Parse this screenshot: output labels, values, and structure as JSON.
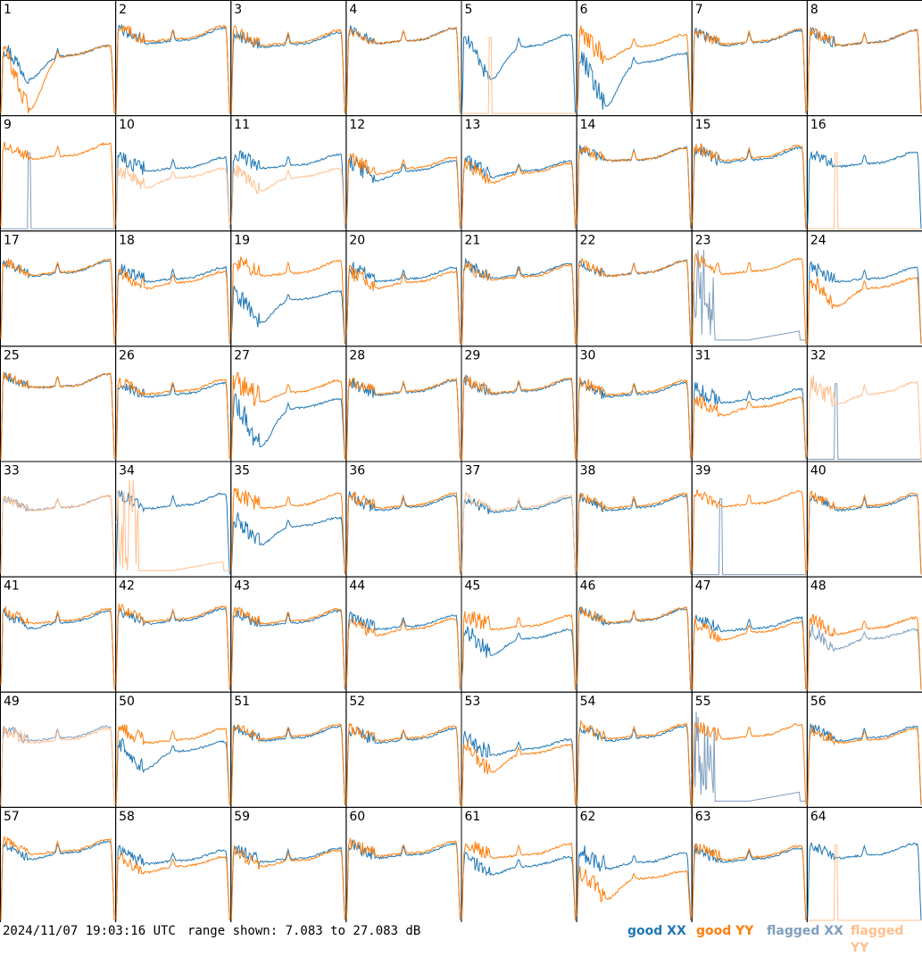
{
  "footer": {
    "timestamp": "2024/11/07 19:03:16 UTC",
    "range_text": "range shown: 7.083 to 27.083 dB"
  },
  "legend": [
    {
      "label": "good XX",
      "color": "#1f77b4"
    },
    {
      "label": "good YY",
      "color": "#ff7f0e"
    },
    {
      "label": "flagged XX",
      "color": "#7f9fbf"
    },
    {
      "label": "flagged YY",
      "color": "#ffbf8f"
    }
  ],
  "chart_data": {
    "type": "line",
    "layout": "small-multiples 8x8",
    "ylim": [
      7.083,
      27.083
    ],
    "yunit": "dB",
    "grid": false,
    "legend_position": "bottom-right",
    "panels": [
      {
        "id": "1",
        "xx": "good",
        "yy": "good",
        "xx_level": 0.62,
        "yy_level": 0.62,
        "xx_dip": 0.25,
        "yy_dip": 0.55,
        "noise": 0.7
      },
      {
        "id": "2",
        "xx": "good",
        "yy": "good",
        "xx_level": 0.78,
        "yy_level": 0.8,
        "xx_dip": 0.05,
        "yy_dip": 0.05,
        "noise": 0.5
      },
      {
        "id": "3",
        "xx": "good",
        "yy": "good",
        "xx_level": 0.74,
        "yy_level": 0.76,
        "xx_dip": 0.05,
        "yy_dip": 0.05,
        "noise": 0.5
      },
      {
        "id": "4",
        "xx": "good",
        "yy": "good",
        "xx_level": 0.78,
        "yy_level": 0.78,
        "xx_dip": 0.05,
        "yy_dip": 0.05,
        "noise": 0.4
      },
      {
        "id": "5",
        "xx": "good",
        "yy": "flagged_dead",
        "xx_level": 0.72,
        "yy_level": 0.0,
        "xx_dip": 0.35,
        "yy_dip": 0.0,
        "noise": 0.6
      },
      {
        "id": "6",
        "xx": "good",
        "yy": "good",
        "xx_level": 0.55,
        "yy_level": 0.72,
        "xx_dip": 0.45,
        "yy_dip": 0.15,
        "noise": 0.9
      },
      {
        "id": "7",
        "xx": "good",
        "yy": "good",
        "xx_level": 0.76,
        "yy_level": 0.77,
        "xx_dip": 0.05,
        "yy_dip": 0.05,
        "noise": 0.4
      },
      {
        "id": "8",
        "xx": "good",
        "yy": "good",
        "xx_level": 0.76,
        "yy_level": 0.76,
        "xx_dip": 0.05,
        "yy_dip": 0.05,
        "noise": 0.5
      },
      {
        "id": "9",
        "xx": "flagged_dead",
        "yy": "good",
        "xx_level": 0.05,
        "yy_level": 0.78,
        "xx_dip": 0.0,
        "yy_dip": 0.05,
        "noise": 0.4
      },
      {
        "id": "10",
        "xx": "good",
        "yy": "flagged",
        "xx_level": 0.65,
        "yy_level": 0.55,
        "xx_dip": 0.05,
        "yy_dip": 0.12,
        "noise": 0.6
      },
      {
        "id": "11",
        "xx": "good",
        "yy": "flagged",
        "xx_level": 0.68,
        "yy_level": 0.55,
        "xx_dip": 0.05,
        "yy_dip": 0.15,
        "noise": 0.6
      },
      {
        "id": "12",
        "xx": "good",
        "yy": "good",
        "xx_level": 0.62,
        "yy_level": 0.65,
        "xx_dip": 0.12,
        "yy_dip": 0.08,
        "noise": 0.6
      },
      {
        "id": "13",
        "xx": "good",
        "yy": "good",
        "xx_level": 0.62,
        "yy_level": 0.6,
        "xx_dip": 0.08,
        "yy_dip": 0.12,
        "noise": 0.6
      },
      {
        "id": "14",
        "xx": "good",
        "yy": "good",
        "xx_level": 0.74,
        "yy_level": 0.74,
        "xx_dip": 0.03,
        "yy_dip": 0.03,
        "noise": 0.4
      },
      {
        "id": "15",
        "xx": "good",
        "yy": "good",
        "xx_level": 0.74,
        "yy_level": 0.76,
        "xx_dip": 0.05,
        "yy_dip": 0.05,
        "noise": 0.5
      },
      {
        "id": "16",
        "xx": "good",
        "yy": "flagged_dead",
        "xx_level": 0.7,
        "yy_level": 0.0,
        "xx_dip": 0.05,
        "yy_dip": 0.0,
        "noise": 0.4
      },
      {
        "id": "17",
        "xx": "good",
        "yy": "good",
        "xx_level": 0.76,
        "yy_level": 0.77,
        "xx_dip": 0.05,
        "yy_dip": 0.05,
        "noise": 0.4
      },
      {
        "id": "18",
        "xx": "good",
        "yy": "good",
        "xx_level": 0.7,
        "yy_level": 0.66,
        "xx_dip": 0.05,
        "yy_dip": 0.08,
        "noise": 0.5
      },
      {
        "id": "19",
        "xx": "good",
        "yy": "good",
        "xx_level": 0.48,
        "yy_level": 0.76,
        "xx_dip": 0.25,
        "yy_dip": 0.05,
        "noise": 0.7
      },
      {
        "id": "20",
        "xx": "good",
        "yy": "good",
        "xx_level": 0.7,
        "yy_level": 0.66,
        "xx_dip": 0.05,
        "yy_dip": 0.08,
        "noise": 0.6
      },
      {
        "id": "21",
        "xx": "good",
        "yy": "good",
        "xx_level": 0.74,
        "yy_level": 0.72,
        "xx_dip": 0.05,
        "yy_dip": 0.05,
        "noise": 0.5
      },
      {
        "id": "22",
        "xx": "good",
        "yy": "good",
        "xx_level": 0.76,
        "yy_level": 0.76,
        "xx_dip": 0.05,
        "yy_dip": 0.05,
        "noise": 0.4
      },
      {
        "id": "23",
        "xx": "flagged_low",
        "yy": "good",
        "xx_level": 0.12,
        "yy_level": 0.78,
        "xx_dip": 0.0,
        "yy_dip": 0.05,
        "noise": 0.6
      },
      {
        "id": "24",
        "xx": "good",
        "yy": "good",
        "xx_level": 0.7,
        "yy_level": 0.6,
        "xx_dip": 0.05,
        "yy_dip": 0.2,
        "noise": 0.6
      },
      {
        "id": "25",
        "xx": "good",
        "yy": "good",
        "xx_level": 0.78,
        "yy_level": 0.78,
        "xx_dip": 0.03,
        "yy_dip": 0.03,
        "noise": 0.4
      },
      {
        "id": "26",
        "xx": "good",
        "yy": "good",
        "xx_level": 0.7,
        "yy_level": 0.73,
        "xx_dip": 0.05,
        "yy_dip": 0.05,
        "noise": 0.4
      },
      {
        "id": "27",
        "xx": "good",
        "yy": "good",
        "xx_level": 0.55,
        "yy_level": 0.72,
        "xx_dip": 0.4,
        "yy_dip": 0.12,
        "noise": 0.9
      },
      {
        "id": "28",
        "xx": "good",
        "yy": "good",
        "xx_level": 0.72,
        "yy_level": 0.73,
        "xx_dip": 0.05,
        "yy_dip": 0.05,
        "noise": 0.5
      },
      {
        "id": "29",
        "xx": "good",
        "yy": "good",
        "xx_level": 0.73,
        "yy_level": 0.74,
        "xx_dip": 0.05,
        "yy_dip": 0.05,
        "noise": 0.5
      },
      {
        "id": "30",
        "xx": "good",
        "yy": "good",
        "xx_level": 0.7,
        "yy_level": 0.72,
        "xx_dip": 0.05,
        "yy_dip": 0.05,
        "noise": 0.5
      },
      {
        "id": "31",
        "xx": "good",
        "yy": "good",
        "xx_level": 0.64,
        "yy_level": 0.56,
        "xx_dip": 0.05,
        "yy_dip": 0.1,
        "noise": 0.6
      },
      {
        "id": "32",
        "xx": "flagged_dead",
        "yy": "flagged",
        "xx_level": 0.0,
        "yy_level": 0.7,
        "xx_dip": 0.0,
        "yy_dip": 0.12,
        "noise": 0.9
      },
      {
        "id": "33",
        "xx": "flagged",
        "yy": "flagged",
        "xx_level": 0.72,
        "yy_level": 0.72,
        "xx_dip": 0.05,
        "yy_dip": 0.05,
        "noise": 0.3
      },
      {
        "id": "34",
        "xx": "good",
        "yy": "flagged_low",
        "xx_level": 0.74,
        "yy_level": 0.08,
        "xx_dip": 0.05,
        "yy_dip": 0.0,
        "noise": 0.5
      },
      {
        "id": "35",
        "xx": "good",
        "yy": "good",
        "xx_level": 0.52,
        "yy_level": 0.74,
        "xx_dip": 0.2,
        "yy_dip": 0.05,
        "noise": 0.7
      },
      {
        "id": "36",
        "xx": "good",
        "yy": "good",
        "xx_level": 0.72,
        "yy_level": 0.74,
        "xx_dip": 0.05,
        "yy_dip": 0.05,
        "noise": 0.5
      },
      {
        "id": "37",
        "xx": "good",
        "yy": "flagged",
        "xx_level": 0.7,
        "yy_level": 0.72,
        "xx_dip": 0.05,
        "yy_dip": 0.05,
        "noise": 0.4
      },
      {
        "id": "38",
        "xx": "good",
        "yy": "good",
        "xx_level": 0.72,
        "yy_level": 0.74,
        "xx_dip": 0.05,
        "yy_dip": 0.05,
        "noise": 0.4
      },
      {
        "id": "39",
        "xx": "flagged_dead",
        "yy": "good",
        "xx_level": 0.0,
        "yy_level": 0.76,
        "xx_dip": 0.0,
        "yy_dip": 0.05,
        "noise": 0.4
      },
      {
        "id": "40",
        "xx": "good",
        "yy": "good",
        "xx_level": 0.72,
        "yy_level": 0.74,
        "xx_dip": 0.05,
        "yy_dip": 0.05,
        "noise": 0.4
      },
      {
        "id": "41",
        "xx": "good",
        "yy": "good",
        "xx_level": 0.72,
        "yy_level": 0.74,
        "xx_dip": 0.08,
        "yy_dip": 0.05,
        "noise": 0.4
      },
      {
        "id": "42",
        "xx": "good",
        "yy": "good",
        "xx_level": 0.74,
        "yy_level": 0.76,
        "xx_dip": 0.05,
        "yy_dip": 0.05,
        "noise": 0.4
      },
      {
        "id": "43",
        "xx": "good",
        "yy": "good",
        "xx_level": 0.72,
        "yy_level": 0.74,
        "xx_dip": 0.05,
        "yy_dip": 0.05,
        "noise": 0.4
      },
      {
        "id": "44",
        "xx": "good",
        "yy": "good",
        "xx_level": 0.68,
        "yy_level": 0.65,
        "xx_dip": 0.05,
        "yy_dip": 0.08,
        "noise": 0.5
      },
      {
        "id": "45",
        "xx": "good",
        "yy": "good",
        "xx_level": 0.55,
        "yy_level": 0.68,
        "xx_dip": 0.18,
        "yy_dip": 0.05,
        "noise": 0.7
      },
      {
        "id": "46",
        "xx": "good",
        "yy": "good",
        "xx_level": 0.74,
        "yy_level": 0.75,
        "xx_dip": 0.05,
        "yy_dip": 0.05,
        "noise": 0.4
      },
      {
        "id": "47",
        "xx": "good",
        "yy": "good",
        "xx_level": 0.66,
        "yy_level": 0.62,
        "xx_dip": 0.05,
        "yy_dip": 0.1,
        "noise": 0.5
      },
      {
        "id": "48",
        "xx": "flagged",
        "yy": "good",
        "xx_level": 0.55,
        "yy_level": 0.66,
        "xx_dip": 0.12,
        "yy_dip": 0.08,
        "noise": 0.6
      },
      {
        "id": "49",
        "xx": "flagged",
        "yy": "flagged",
        "xx_level": 0.72,
        "yy_level": 0.7,
        "xx_dip": 0.05,
        "yy_dip": 0.05,
        "noise": 0.5
      },
      {
        "id": "50",
        "xx": "good",
        "yy": "good",
        "xx_level": 0.58,
        "yy_level": 0.7,
        "xx_dip": 0.2,
        "yy_dip": 0.05,
        "noise": 0.6
      },
      {
        "id": "51",
        "xx": "good",
        "yy": "good",
        "xx_level": 0.72,
        "yy_level": 0.74,
        "xx_dip": 0.05,
        "yy_dip": 0.05,
        "noise": 0.4
      },
      {
        "id": "52",
        "xx": "good",
        "yy": "good",
        "xx_level": 0.7,
        "yy_level": 0.72,
        "xx_dip": 0.05,
        "yy_dip": 0.05,
        "noise": 0.5
      },
      {
        "id": "53",
        "xx": "good",
        "yy": "good",
        "xx_level": 0.6,
        "yy_level": 0.55,
        "xx_dip": 0.08,
        "yy_dip": 0.2,
        "noise": 0.7
      },
      {
        "id": "54",
        "xx": "good",
        "yy": "good",
        "xx_level": 0.72,
        "yy_level": 0.74,
        "xx_dip": 0.05,
        "yy_dip": 0.05,
        "noise": 0.4
      },
      {
        "id": "55",
        "xx": "flagged_low",
        "yy": "good",
        "xx_level": 0.12,
        "yy_level": 0.74,
        "xx_dip": 0.0,
        "yy_dip": 0.05,
        "noise": 0.6
      },
      {
        "id": "56",
        "xx": "good",
        "yy": "good",
        "xx_level": 0.72,
        "yy_level": 0.7,
        "xx_dip": 0.05,
        "yy_dip": 0.05,
        "noise": 0.5
      },
      {
        "id": "57",
        "xx": "good",
        "yy": "good",
        "xx_level": 0.72,
        "yy_level": 0.74,
        "xx_dip": 0.08,
        "yy_dip": 0.05,
        "noise": 0.4
      },
      {
        "id": "58",
        "xx": "good",
        "yy": "good",
        "xx_level": 0.64,
        "yy_level": 0.58,
        "xx_dip": 0.05,
        "yy_dip": 0.08,
        "noise": 0.5
      },
      {
        "id": "59",
        "xx": "good",
        "yy": "good",
        "xx_level": 0.66,
        "yy_level": 0.64,
        "xx_dip": 0.05,
        "yy_dip": 0.08,
        "noise": 0.5
      },
      {
        "id": "60",
        "xx": "good",
        "yy": "good",
        "xx_level": 0.7,
        "yy_level": 0.72,
        "xx_dip": 0.05,
        "yy_dip": 0.05,
        "noise": 0.5
      },
      {
        "id": "61",
        "xx": "good",
        "yy": "good",
        "xx_level": 0.58,
        "yy_level": 0.7,
        "xx_dip": 0.1,
        "yy_dip": 0.05,
        "noise": 0.6
      },
      {
        "id": "62",
        "xx": "good",
        "yy": "good",
        "xx_level": 0.62,
        "yy_level": 0.45,
        "xx_dip": 0.08,
        "yy_dip": 0.22,
        "noise": 0.8
      },
      {
        "id": "63",
        "xx": "good",
        "yy": "good",
        "xx_level": 0.66,
        "yy_level": 0.68,
        "xx_dip": 0.05,
        "yy_dip": 0.05,
        "noise": 0.5
      },
      {
        "id": "64",
        "xx": "good",
        "yy": "flagged_dead",
        "xx_level": 0.7,
        "yy_level": 0.0,
        "xx_dip": 0.05,
        "yy_dip": 0.0,
        "noise": 0.4
      }
    ]
  }
}
